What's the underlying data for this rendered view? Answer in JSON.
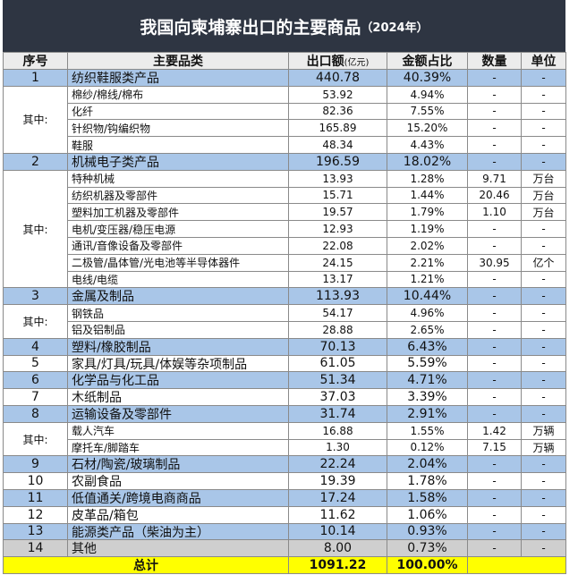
{
  "header": {
    "title": "我国向柬埔寨出口的主要商品",
    "title_suffix": "（2024年）"
  },
  "table": {
    "columns": {
      "no": "序号",
      "name": "主要品类",
      "amount": "出口额",
      "amount_unit": "(亿元)",
      "share": "金额占比",
      "qty": "数量",
      "unit": "单位"
    },
    "rows": [
      {
        "no": "1",
        "name": "纺织鞋服类产品",
        "amount": "440.78",
        "share": "40.39%",
        "qty": "-",
        "unit": "-",
        "color": "#a9c6e8"
      },
      {
        "label": "其中:",
        "items": [
          {
            "name": "棉纱/棉线/棉布",
            "amount": "53.92",
            "share": "4.94%",
            "qty": "-",
            "unit": "-"
          },
          {
            "name": "化纤",
            "amount": "82.36",
            "share": "7.55%",
            "qty": "-",
            "unit": "-"
          },
          {
            "name": "针织物/钩编织物",
            "amount": "165.89",
            "share": "15.20%",
            "qty": "-",
            "unit": "-"
          },
          {
            "name": "鞋服",
            "amount": "48.34",
            "share": "4.43%",
            "qty": "-",
            "unit": "-"
          }
        ]
      },
      {
        "no": "2",
        "name": "机械电子类产品",
        "amount": "196.59",
        "share": "18.02%",
        "qty": "-",
        "unit": "-",
        "color": "#a9c6e8"
      },
      {
        "label": "其中:",
        "items": [
          {
            "name": "特种机械",
            "amount": "13.93",
            "share": "1.28%",
            "qty": "9.71",
            "unit": "万台"
          },
          {
            "name": "纺织机器及零部件",
            "amount": "15.71",
            "share": "1.44%",
            "qty": "20.46",
            "unit": "万台"
          },
          {
            "name": "塑料加工机器及零部件",
            "amount": "19.57",
            "share": "1.79%",
            "qty": "1.10",
            "unit": "万台"
          },
          {
            "name": "电机/变压器/稳压电源",
            "amount": "12.93",
            "share": "1.19%",
            "qty": "-",
            "unit": "-"
          },
          {
            "name": "通讯/音像设备及零部件",
            "amount": "22.08",
            "share": "2.02%",
            "qty": "-",
            "unit": "-"
          },
          {
            "name": "二极管/晶体管/光电池等半导体器件",
            "amount": "24.15",
            "share": "2.21%",
            "qty": "30.95",
            "unit": "亿个"
          },
          {
            "name": "电线/电缆",
            "amount": "13.17",
            "share": "1.21%",
            "qty": "-",
            "unit": "-"
          }
        ]
      },
      {
        "no": "3",
        "name": "金属及制品",
        "amount": "113.93",
        "share": "10.44%",
        "qty": "-",
        "unit": "-",
        "color": "#a9c6e8"
      },
      {
        "label": "其中:",
        "items": [
          {
            "name": "钢铁品",
            "amount": "54.17",
            "share": "4.96%",
            "qty": "-",
            "unit": "-"
          },
          {
            "name": "铝及铝制品",
            "amount": "28.88",
            "share": "2.65%",
            "qty": "-",
            "unit": "-"
          }
        ]
      },
      {
        "no": "4",
        "name": "塑料/橡胶制品",
        "amount": "70.13",
        "share": "6.43%",
        "qty": "-",
        "unit": "-",
        "color": "#a9c6e8"
      },
      {
        "no": "5",
        "name": "家具/灯具/玩具/体娱等杂项制品",
        "amount": "61.05",
        "share": "5.59%",
        "qty": "-",
        "unit": "-",
        "color": "#ffffff"
      },
      {
        "no": "6",
        "name": "化学品与化工品",
        "amount": "51.34",
        "share": "4.71%",
        "qty": "-",
        "unit": "-",
        "color": "#a9c6e8"
      },
      {
        "no": "7",
        "name": "木纸制品",
        "amount": "37.03",
        "share": "3.39%",
        "qty": "-",
        "unit": "-",
        "color": "#ffffff"
      },
      {
        "no": "8",
        "name": "运输设备及零部件",
        "amount": "31.74",
        "share": "2.91%",
        "qty": "-",
        "unit": "-",
        "color": "#a9c6e8"
      },
      {
        "label": "其中:",
        "items": [
          {
            "name": "载人汽车",
            "amount": "16.88",
            "share": "1.55%",
            "qty": "1.42",
            "unit": "万辆"
          },
          {
            "name": "摩托车/脚踏车",
            "amount": "1.30",
            "share": "0.12%",
            "qty": "7.15",
            "unit": "万辆"
          }
        ]
      },
      {
        "no": "9",
        "name": "石材/陶瓷/玻璃制品",
        "amount": "22.24",
        "share": "2.04%",
        "qty": "-",
        "unit": "-",
        "color": "#a9c6e8"
      },
      {
        "no": "10",
        "name": "农副食品",
        "amount": "19.39",
        "share": "1.78%",
        "qty": "-",
        "unit": "-",
        "color": "#ffffff"
      },
      {
        "no": "11",
        "name": "低值通关/跨境电商商品",
        "amount": "17.24",
        "share": "1.58%",
        "qty": "-",
        "unit": "-",
        "color": "#a9c6e8"
      },
      {
        "no": "12",
        "name": "皮革品/箱包",
        "amount": "11.62",
        "share": "1.06%",
        "qty": "-",
        "unit": "-",
        "color": "#ffffff"
      },
      {
        "no": "13",
        "name": "能源类产品（柴油为主）",
        "amount": "10.14",
        "share": "0.93%",
        "qty": "-",
        "unit": "-",
        "color": "#a9c6e8"
      },
      {
        "no": "14",
        "name": "其他",
        "amount": "8.00",
        "share": "0.73%",
        "qty": "-",
        "unit": "-",
        "color": "#cfcfcf"
      }
    ],
    "total": {
      "label": "总计",
      "amount": "1091.22",
      "share": "100.00%",
      "color": "#ffff00"
    }
  }
}
